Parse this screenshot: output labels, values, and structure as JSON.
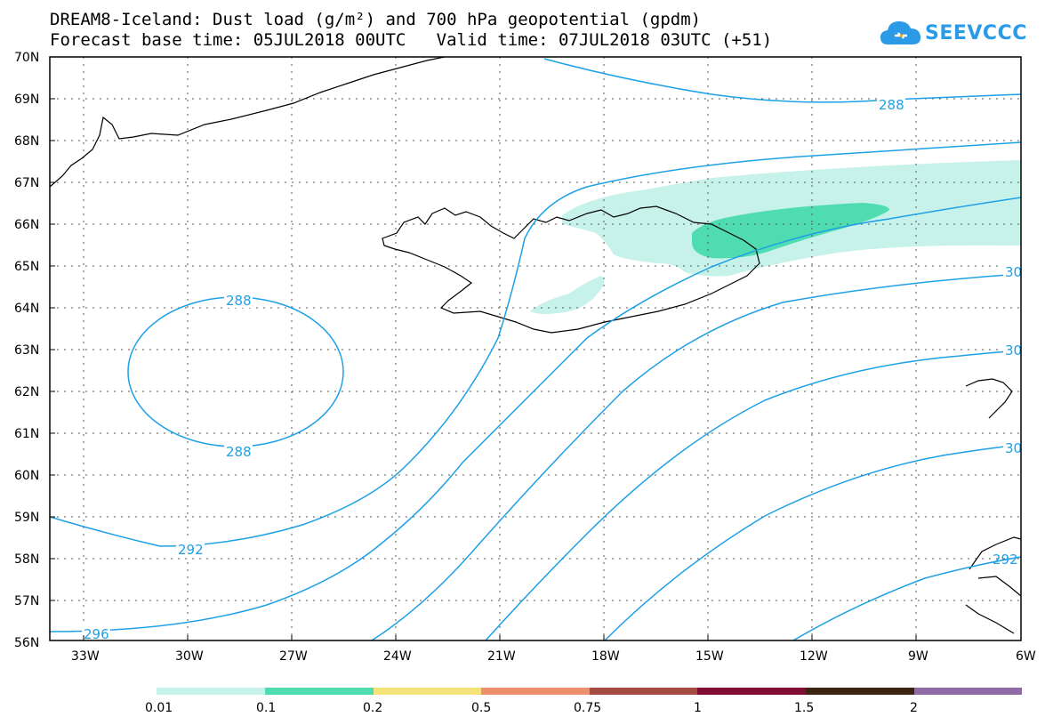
{
  "title": {
    "line1": "DREAM8-Iceland: Dust load (g/m²) and 700 hPa geopotential (gpdm)",
    "line2": "Forecast base time: 05JUL2018 00UTC   Valid time: 07JUL2018 03UTC (+51)"
  },
  "logo": {
    "text": "SEEVCCC",
    "color": "#2b9be8"
  },
  "map": {
    "lat_labels": [
      "70N",
      "69N",
      "68N",
      "67N",
      "66N",
      "65N",
      "64N",
      "63N",
      "62N",
      "61N",
      "60N",
      "59N",
      "58N",
      "57N",
      "56N"
    ],
    "lon_labels": [
      "33W",
      "30W",
      "27W",
      "24W",
      "21W",
      "18W",
      "15W",
      "12W",
      "9W",
      "6W"
    ],
    "contour_color": "#1ea0e6",
    "contour_labels": [
      "288",
      "288",
      "288",
      "292",
      "296",
      "30",
      "30",
      "30",
      "292"
    ]
  },
  "colorbar": {
    "labels": [
      "0.01",
      "0.1",
      "0.2",
      "0.5",
      "0.75",
      "1",
      "1.5",
      "2"
    ],
    "colors": [
      "#c6f2ea",
      "#4fdcb0",
      "#f5e27a",
      "#ec8f6a",
      "#a44c44",
      "#820d33",
      "#3d2410",
      "#8f6aa4"
    ]
  }
}
